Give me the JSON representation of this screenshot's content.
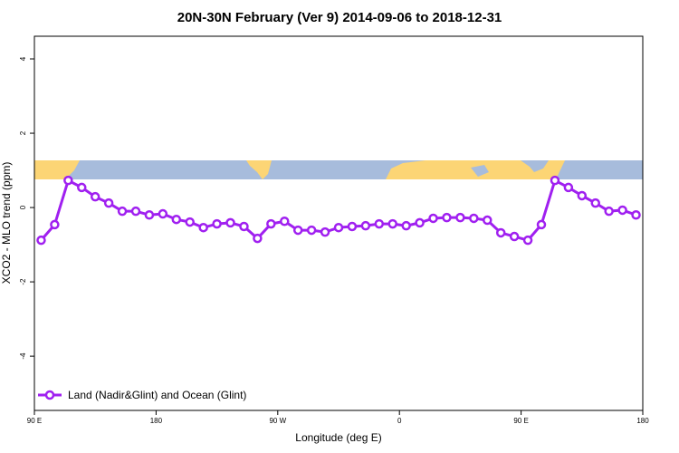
{
  "chart_data": {
    "type": "line",
    "title": "20N-30N February (Ver 9)   2014-09-06 to 2018-12-31",
    "x_label": "Longitude (deg E)",
    "y_label": "XCO2 - MLO trend (ppm)",
    "x": [
      95,
      105,
      115,
      125,
      135,
      145,
      155,
      165,
      175,
      185,
      195,
      205,
      215,
      225,
      235,
      245,
      255,
      265,
      275,
      285,
      295,
      305,
      315,
      325,
      335,
      345,
      355,
      365,
      375,
      385,
      395,
      405,
      415,
      425,
      435,
      445,
      455,
      465,
      475,
      485,
      495,
      505,
      515,
      525,
      535
    ],
    "series": [
      {
        "name": "Land (Nadir&Glint) and Ocean (Glint)",
        "color": "#a020f0",
        "values": [
          -0.88,
          -0.46,
          0.73,
          0.54,
          0.29,
          0.12,
          -0.1,
          -0.1,
          -0.2,
          -0.17,
          -0.32,
          -0.39,
          -0.54,
          -0.44,
          -0.41,
          -0.51,
          -0.83,
          -0.44,
          -0.37,
          -0.61,
          -0.61,
          -0.66,
          -0.54,
          -0.51,
          -0.49,
          -0.44,
          -0.44,
          -0.49,
          -0.41,
          -0.29,
          -0.27,
          -0.27,
          -0.29,
          -0.34,
          -0.68,
          -0.78,
          -0.88,
          -0.46,
          0.73,
          0.54,
          0.32,
          0.12,
          -0.1,
          -0.07,
          -0.2
        ]
      }
    ],
    "xlim": [
      90,
      540
    ],
    "xticks": [
      {
        "value": 90,
        "label": "90 E"
      },
      180,
      {
        "value": 270,
        "label": "90 W"
      },
      {
        "value": 360,
        "label": "0"
      },
      {
        "value": 450,
        "label": "90 E"
      },
      {
        "value": 540,
        "label": "180"
      }
    ],
    "ylim": [
      -5.46,
      4.61
    ],
    "yticks": [
      -4,
      -2,
      0,
      2,
      4
    ],
    "legend": "bottom-left"
  }
}
